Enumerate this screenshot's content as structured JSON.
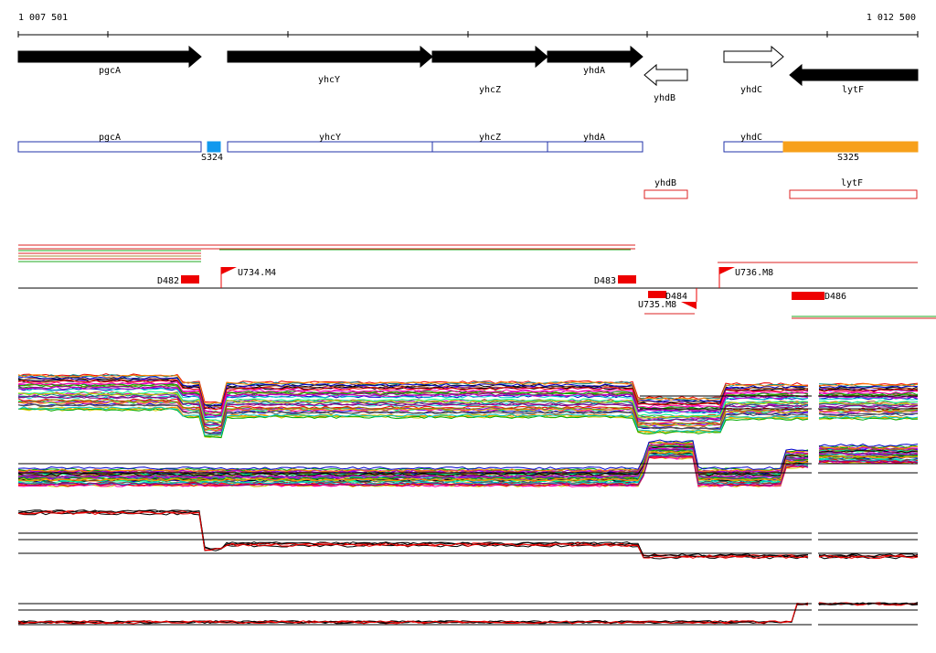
{
  "ruler": {
    "start": "1 007 501",
    "end": "1 012 500"
  },
  "genes": [
    "pgcA",
    "yhcY",
    "yhcZ",
    "yhdA",
    "yhdB",
    "yhdC",
    "lytF"
  ],
  "annotations": [
    "pgcA",
    "S324",
    "yhcY",
    "yhcZ",
    "yhdA",
    "yhdC",
    "S325"
  ],
  "regions": [
    "yhdB",
    "lytF"
  ],
  "transcripts": [
    "D482",
    "U734.M4",
    "D483",
    "D484",
    "U735.M8",
    "U736.M8",
    "D486"
  ]
}
